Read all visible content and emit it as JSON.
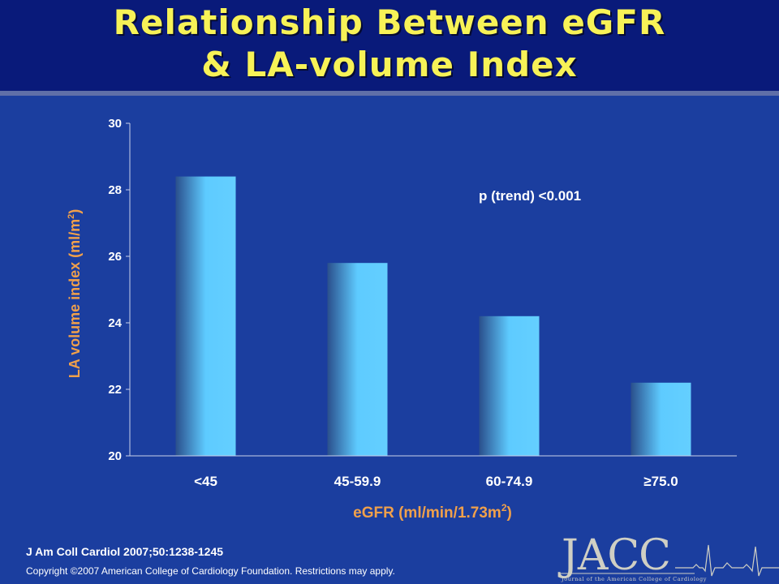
{
  "slide": {
    "title_line1": "Relationship Between eGFR",
    "title_line2": "& LA-volume Index",
    "annotation": "p (trend) <0.001",
    "citation": "J Am Coll Cardiol 2007;50:1238-1245",
    "copyright": "Copyright ©2007 American College of Cardiology Foundation. Restrictions may apply.",
    "logo": {
      "word": "JACC",
      "subtitle": "Journal of the American College of Cardiology"
    },
    "colors": {
      "background": "#1b3e9f",
      "title_band": "#091a7a",
      "title_text": "#f7f257",
      "axis_title": "#f0a04b",
      "bar_light": "#5ecbff",
      "bar_dark": "#2a4f8c"
    }
  },
  "chart_data": {
    "type": "bar",
    "title": "",
    "categories": [
      "<45",
      "45-59.9",
      "60-74.9",
      "≥75.0"
    ],
    "values": [
      28.4,
      25.8,
      24.2,
      22.2
    ],
    "xlabel_prefix": "eGFR (ml/min/1.73m",
    "xlabel_sup": "2",
    "xlabel_suffix": ")",
    "ylabel_prefix": "LA volume index (ml/m",
    "ylabel_sup": "2",
    "ylabel_suffix": ")",
    "ylim": [
      20,
      30
    ],
    "yticks": [
      20,
      22,
      24,
      26,
      28,
      30
    ],
    "grid": false,
    "legend": "none"
  }
}
